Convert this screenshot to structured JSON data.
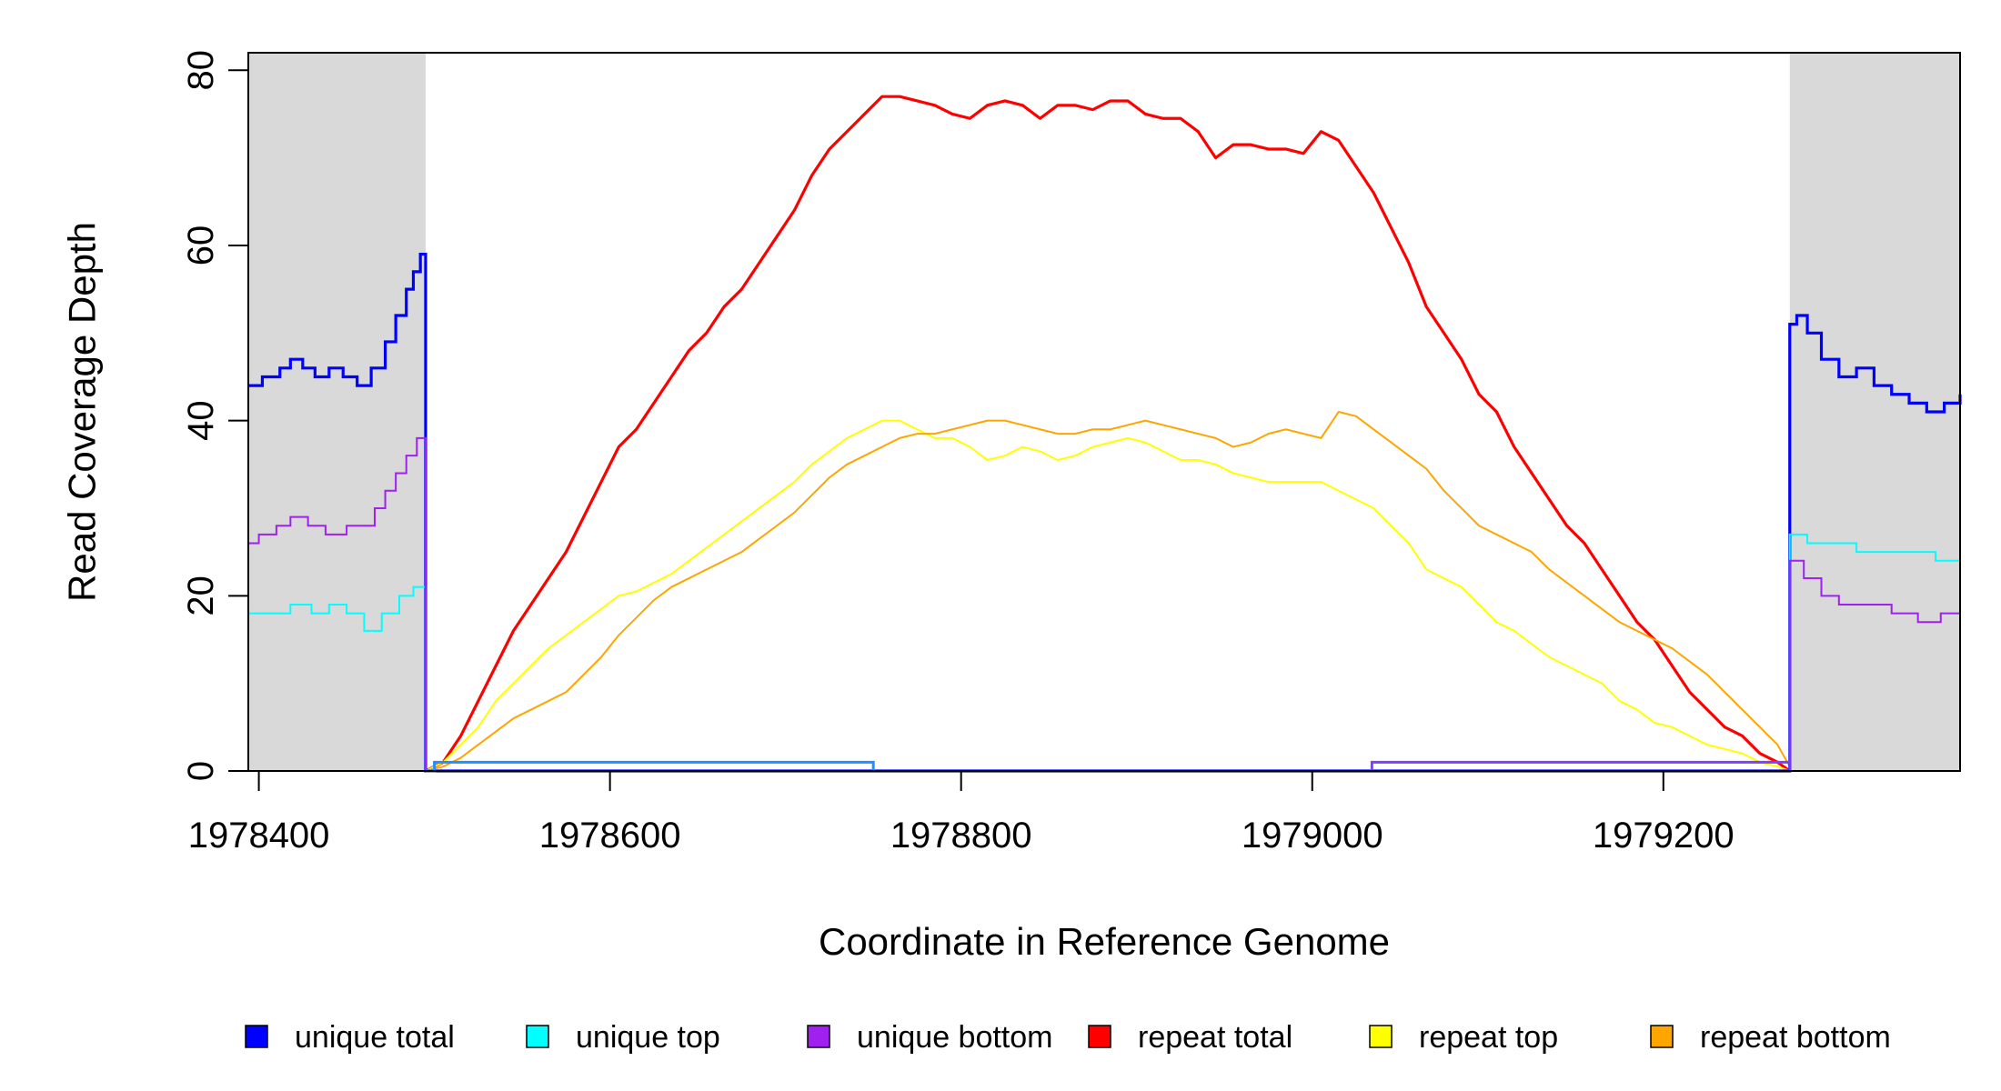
{
  "chart_data": {
    "type": "line",
    "title": "",
    "xlabel": "Coordinate in Reference Genome",
    "ylabel": "Read Coverage Depth",
    "xlim": [
      1978394,
      1979369
    ],
    "ylim": [
      0,
      82
    ],
    "x_ticks": [
      1978400,
      1978600,
      1978800,
      1979000,
      1979200
    ],
    "x_tick_labels": [
      "1978400",
      "1978600",
      "1978800",
      "1979000",
      "1979200"
    ],
    "y_ticks": [
      0,
      20,
      40,
      60,
      80
    ],
    "y_tick_labels": [
      "0",
      "20",
      "40",
      "60",
      "80"
    ],
    "grid": false,
    "legend_position": "bottom",
    "shaded_regions": [
      {
        "x0": 1978394,
        "x1": 1978495,
        "color": "#d9d9d9"
      },
      {
        "x0": 1979272,
        "x1": 1979369,
        "color": "#d9d9d9"
      }
    ],
    "legend": [
      {
        "label": "unique total",
        "color": "#0000ff"
      },
      {
        "label": "unique top",
        "color": "#00ffff"
      },
      {
        "label": "unique bottom",
        "color": "#a020f0"
      },
      {
        "label": "repeat total",
        "color": "#ff0000"
      },
      {
        "label": "repeat top",
        "color": "#ffff00"
      },
      {
        "label": "repeat bottom",
        "color": "#ffa500"
      }
    ],
    "series": [
      {
        "name": "repeat total",
        "color": "#ff0000",
        "width": 3.2,
        "x": [
          1978495,
          1978505,
          1978515,
          1978525,
          1978535,
          1978545,
          1978555,
          1978565,
          1978575,
          1978585,
          1978595,
          1978605,
          1978615,
          1978625,
          1978635,
          1978645,
          1978655,
          1978665,
          1978675,
          1978685,
          1978695,
          1978705,
          1978715,
          1978725,
          1978735,
          1978745,
          1978755,
          1978765,
          1978775,
          1978785,
          1978795,
          1978805,
          1978815,
          1978825,
          1978835,
          1978845,
          1978855,
          1978865,
          1978875,
          1978885,
          1978895,
          1978905,
          1978915,
          1978925,
          1978935,
          1978945,
          1978955,
          1978965,
          1978975,
          1978985,
          1978995,
          1979005,
          1979015,
          1979025,
          1979035,
          1979045,
          1979055,
          1979065,
          1979075,
          1979085,
          1979095,
          1979105,
          1979115,
          1979125,
          1979135,
          1979145,
          1979155,
          1979165,
          1979175,
          1979185,
          1979195,
          1979205,
          1979215,
          1979225,
          1979235,
          1979245,
          1979255,
          1979265,
          1979272
        ],
        "y": [
          0,
          1,
          4,
          8,
          12,
          16,
          19,
          22,
          25,
          29,
          33,
          37,
          39,
          42,
          45,
          48,
          50,
          53,
          55,
          58,
          61,
          64,
          68,
          71,
          73,
          75,
          77,
          77,
          76.5,
          76,
          75,
          74.5,
          76,
          76.5,
          76,
          74.5,
          76,
          76,
          75.5,
          76.5,
          76.5,
          75,
          74.5,
          74.5,
          73,
          70,
          71.5,
          71.5,
          71,
          71,
          70.5,
          73,
          72,
          69,
          66,
          62,
          58,
          53,
          50,
          47,
          43,
          41,
          37,
          34,
          31,
          28,
          26,
          23,
          20,
          17,
          15,
          12,
          9,
          7,
          5,
          4,
          2,
          1,
          0
        ]
      },
      {
        "name": "repeat top",
        "color": "#ffff00",
        "width": 2,
        "x": [
          1978495,
          1978505,
          1978515,
          1978525,
          1978535,
          1978545,
          1978555,
          1978565,
          1978575,
          1978585,
          1978595,
          1978605,
          1978615,
          1978625,
          1978635,
          1978645,
          1978655,
          1978665,
          1978675,
          1978685,
          1978695,
          1978705,
          1978715,
          1978725,
          1978735,
          1978745,
          1978755,
          1978765,
          1978775,
          1978785,
          1978795,
          1978805,
          1978815,
          1978825,
          1978835,
          1978845,
          1978855,
          1978865,
          1978875,
          1978885,
          1978895,
          1978905,
          1978915,
          1978925,
          1978935,
          1978945,
          1978955,
          1978965,
          1978975,
          1978985,
          1978995,
          1979005,
          1979015,
          1979025,
          1979035,
          1979045,
          1979055,
          1979065,
          1979075,
          1979085,
          1979095,
          1979105,
          1979115,
          1979125,
          1979135,
          1979145,
          1979155,
          1979165,
          1979175,
          1979185,
          1979195,
          1979205,
          1979215,
          1979225,
          1979235,
          1979245,
          1979255,
          1979265,
          1979272
        ],
        "y": [
          0,
          1,
          3,
          5,
          8,
          10,
          12,
          14,
          15.5,
          17,
          18.5,
          20,
          20.5,
          21.5,
          22.5,
          24,
          25.5,
          27,
          28.5,
          30,
          31.5,
          33,
          35,
          36.5,
          38,
          39,
          40,
          40,
          39,
          38,
          38,
          37,
          35.5,
          36,
          37,
          36.5,
          35.5,
          36,
          37,
          37.5,
          38,
          37.5,
          36.5,
          35.5,
          35.5,
          35,
          34,
          33.5,
          33,
          33,
          33,
          33,
          32,
          31,
          30,
          28,
          26,
          23,
          22,
          21,
          19,
          17,
          16,
          14.5,
          13,
          12,
          11,
          10,
          8,
          7,
          5.5,
          5,
          4,
          3,
          2.5,
          2,
          1,
          0.5,
          0
        ]
      },
      {
        "name": "repeat bottom",
        "color": "#ffa500",
        "width": 2,
        "x": [
          1978495,
          1978505,
          1978515,
          1978525,
          1978535,
          1978545,
          1978555,
          1978565,
          1978575,
          1978585,
          1978595,
          1978605,
          1978615,
          1978625,
          1978635,
          1978645,
          1978655,
          1978665,
          1978675,
          1978685,
          1978695,
          1978705,
          1978715,
          1978725,
          1978735,
          1978745,
          1978755,
          1978765,
          1978775,
          1978785,
          1978795,
          1978805,
          1978815,
          1978825,
          1978835,
          1978845,
          1978855,
          1978865,
          1978875,
          1978885,
          1978895,
          1978905,
          1978915,
          1978925,
          1978935,
          1978945,
          1978955,
          1978965,
          1978975,
          1978985,
          1978995,
          1979005,
          1979015,
          1979025,
          1979035,
          1979045,
          1979055,
          1979065,
          1979075,
          1979085,
          1979095,
          1979105,
          1979115,
          1979125,
          1979135,
          1979145,
          1979155,
          1979165,
          1979175,
          1979185,
          1979195,
          1979205,
          1979215,
          1979225,
          1979235,
          1979245,
          1979255,
          1979265,
          1979272
        ],
        "y": [
          0,
          0.5,
          1.5,
          3,
          4.5,
          6,
          7,
          8,
          9,
          11,
          13,
          15.5,
          17.5,
          19.5,
          21,
          22,
          23,
          24,
          25,
          26.5,
          28,
          29.5,
          31.5,
          33.5,
          35,
          36,
          37,
          38,
          38.5,
          38.5,
          39,
          39.5,
          40,
          40,
          39.5,
          39,
          38.5,
          38.5,
          39,
          39,
          39.5,
          40,
          39.5,
          39,
          38.5,
          38,
          37,
          37.5,
          38.5,
          39,
          38.5,
          38,
          41,
          40.5,
          39,
          37.5,
          36,
          34.5,
          32,
          30,
          28,
          27,
          26,
          25,
          23,
          21.5,
          20,
          18.5,
          17,
          16,
          15,
          14,
          12.5,
          11,
          9,
          7,
          5,
          3,
          0.5
        ]
      },
      {
        "name": "unique total",
        "color": "#0000ff",
        "width": 3.2,
        "x": [
          1978394,
          1978402,
          1978412,
          1978418,
          1978425,
          1978432,
          1978440,
          1978448,
          1978456,
          1978464,
          1978472,
          1978478,
          1978484,
          1978488,
          1978492,
          1978495,
          1978495,
          1979272,
          1979272,
          1979276,
          1979282,
          1979290,
          1979300,
          1979310,
          1979320,
          1979330,
          1979340,
          1979350,
          1979360,
          1979369
        ],
        "y": [
          44,
          45,
          46,
          47,
          46,
          45,
          46,
          45,
          44,
          46,
          49,
          52,
          55,
          57,
          59,
          58,
          0,
          0,
          51,
          52,
          50,
          47,
          45,
          46,
          44,
          43,
          42,
          41,
          42,
          43
        ]
      },
      {
        "name": "unique top",
        "color": "#00ffff",
        "width": 2,
        "x": [
          1978394,
          1978405,
          1978418,
          1978430,
          1978440,
          1978450,
          1978460,
          1978470,
          1978480,
          1978488,
          1978495,
          1978495,
          1979272,
          1979272,
          1979282,
          1979295,
          1979310,
          1979325,
          1979340,
          1979355,
          1979369
        ],
        "y": [
          18,
          18,
          19,
          18,
          19,
          18,
          16,
          18,
          20,
          21,
          21,
          0,
          0,
          27,
          26,
          26,
          25,
          25,
          25,
          24,
          23
        ]
      },
      {
        "name": "unique bottom",
        "color": "#a020f0",
        "width": 2,
        "x": [
          1978394,
          1978400,
          1978410,
          1978418,
          1978428,
          1978438,
          1978450,
          1978460,
          1978466,
          1978472,
          1978478,
          1978484,
          1978490,
          1978495,
          1978495,
          1979272,
          1979272,
          1979280,
          1979290,
          1979300,
          1979315,
          1979330,
          1979345,
          1979358,
          1979369
        ],
        "y": [
          26,
          27,
          28,
          29,
          28,
          27,
          28,
          28,
          30,
          32,
          34,
          36,
          38,
          38,
          0,
          0,
          24,
          22,
          20,
          19,
          19,
          18,
          17,
          18,
          20
        ]
      }
    ],
    "baseline_steps": [
      {
        "name": "unique top",
        "color": "#1e90ff",
        "x": [
          1978495,
          1978500,
          1978500,
          1978750,
          1978750
        ],
        "y": [
          0,
          0,
          1,
          1,
          0
        ]
      },
      {
        "name": "unique bottom",
        "color": "#7f3fff",
        "x": [
          1979034,
          1979034,
          1979272
        ],
        "y": [
          0,
          1,
          1
        ]
      }
    ]
  }
}
